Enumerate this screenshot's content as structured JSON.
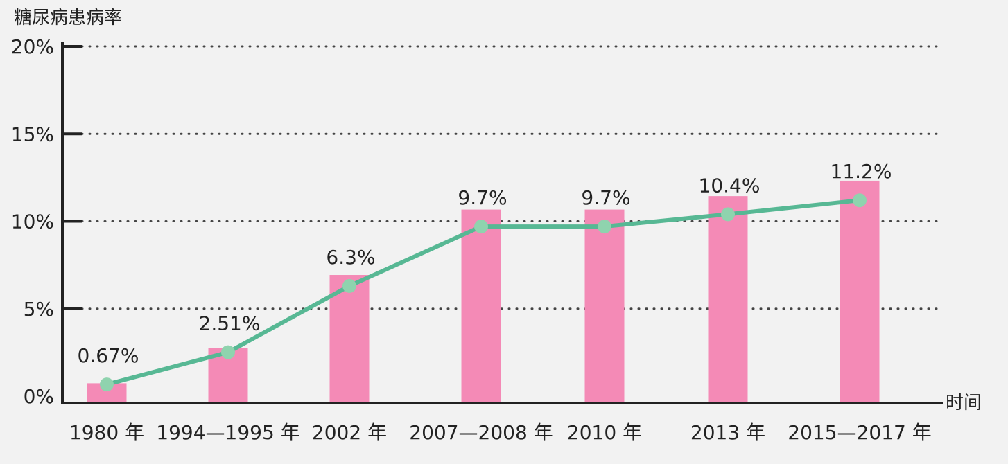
{
  "chart_data": {
    "type": "bar",
    "ylabel": "糖尿病患病率",
    "xlabel": "时间",
    "yticks": [
      "0%",
      "5%",
      "10%",
      "15%",
      "20%"
    ],
    "ylim": [
      0,
      20
    ],
    "grid": true,
    "categories": [
      "1980 年",
      "1994—1995 年",
      "2002 年",
      "2007—2008 年",
      "2010 年",
      "2013 年",
      "2015—2017 年"
    ],
    "data_labels": [
      "0.67%",
      "2.51%",
      "6.3%",
      "9.7%",
      "9.7%",
      "10.4%",
      "11.2%"
    ],
    "values": [
      0.67,
      2.51,
      6.3,
      9.7,
      9.7,
      10.4,
      11.2
    ],
    "line_overlay": true,
    "colors": {
      "bar": "#f48ab6",
      "line": "#57b894",
      "marker": "#8fd3ae",
      "axis": "#222222",
      "grid": "#444444",
      "background": "#f2f2f2"
    }
  }
}
